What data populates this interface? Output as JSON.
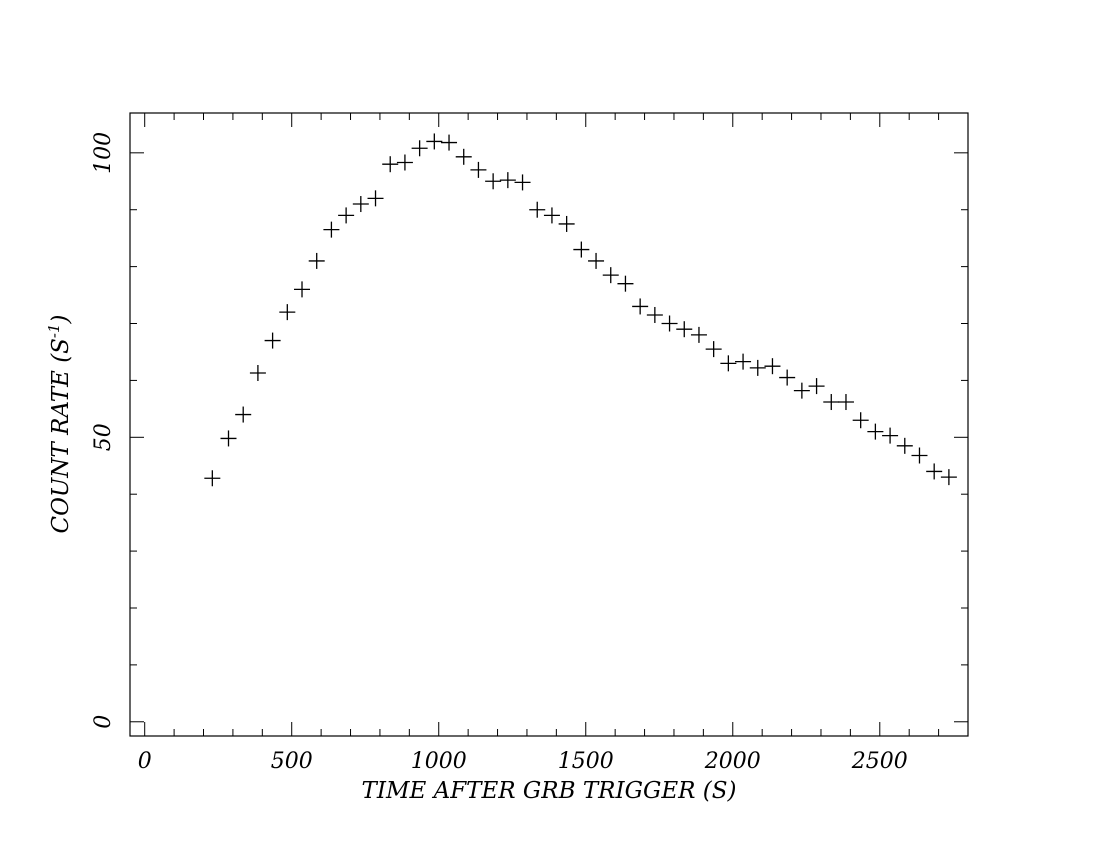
{
  "chart_data": {
    "type": "scatter",
    "xlabel": "TIME AFTER GRB TRIGGER (S)",
    "ylabel_main": "COUNT RATE (S",
    "ylabel_sup": "-1",
    "ylabel_close": ")",
    "xlim": [
      -50,
      2800
    ],
    "ylim": [
      -2.5,
      107
    ],
    "x_ticks": [
      0,
      500,
      1000,
      1500,
      2000,
      2500
    ],
    "x_tick_labels": [
      "0",
      "500",
      "1000",
      "1500",
      "2000",
      "2500"
    ],
    "x_minor_step": 100,
    "y_ticks": [
      0,
      50,
      100
    ],
    "y_tick_labels": [
      "0",
      "50",
      "100"
    ],
    "y_minor_step": 10,
    "grid": false,
    "legend": "none",
    "marker": "plus",
    "color": "#000000",
    "x": [
      230,
      285,
      335,
      385,
      435,
      485,
      535,
      585,
      635,
      685,
      735,
      785,
      835,
      885,
      935,
      985,
      1035,
      1085,
      1135,
      1185,
      1235,
      1285,
      1335,
      1385,
      1435,
      1485,
      1535,
      1585,
      1635,
      1685,
      1735,
      1785,
      1835,
      1885,
      1935,
      1985,
      2035,
      2085,
      2135,
      2185,
      2235,
      2285,
      2335,
      2385,
      2435,
      2485,
      2535,
      2585,
      2635,
      2685,
      2735
    ],
    "y": [
      42.8,
      49.8,
      54.0,
      61.3,
      67.0,
      72.0,
      76.0,
      81.0,
      86.5,
      89.0,
      91.0,
      92.0,
      98.0,
      98.3,
      100.8,
      102.0,
      101.8,
      99.3,
      97.0,
      95.0,
      95.2,
      94.8,
      90.0,
      89.0,
      87.5,
      83.0,
      81.0,
      78.5,
      77.0,
      73.0,
      71.5,
      70.0,
      69.0,
      68.0,
      65.5,
      63.0,
      63.3,
      62.2,
      62.5,
      60.5,
      58.2,
      59.0,
      56.2,
      56.2,
      53.0,
      51.0,
      50.3,
      48.5,
      46.8,
      44.0,
      43.0
    ]
  }
}
